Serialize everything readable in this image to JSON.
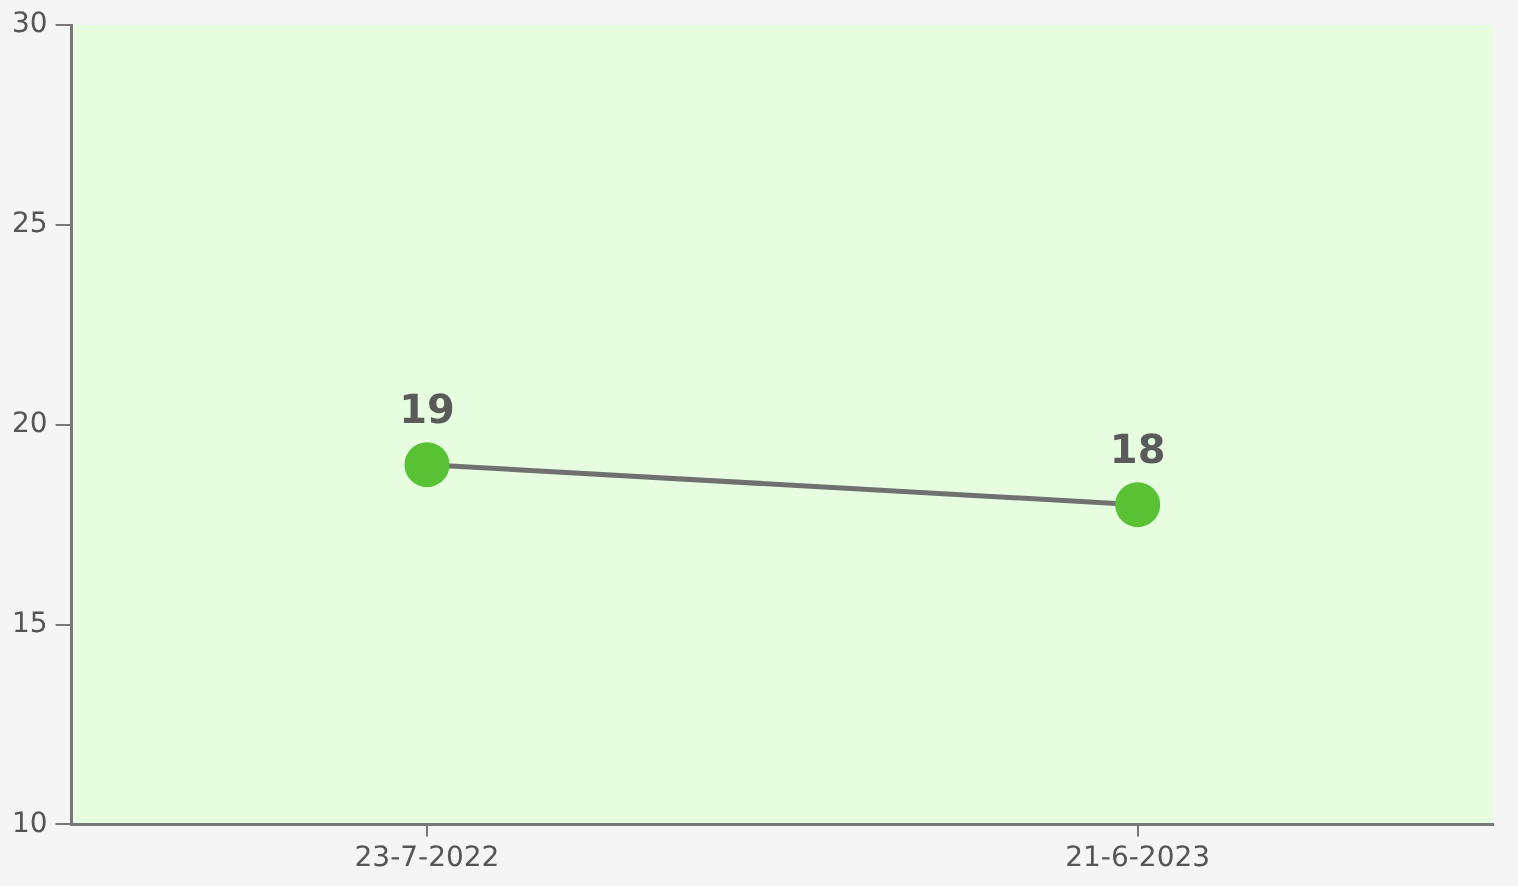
{
  "chart_data": {
    "type": "line",
    "categories": [
      "23-7-2022",
      "21-6-2023"
    ],
    "series": [
      {
        "color": "#59c234",
        "values": [
          19,
          18
        ]
      }
    ],
    "ylim": [
      10,
      30
    ],
    "yticks": [
      10,
      15,
      20,
      25,
      30
    ],
    "grid": false,
    "legend": false,
    "marker": "circle",
    "line_style": "solid",
    "data_labels": true
  }
}
